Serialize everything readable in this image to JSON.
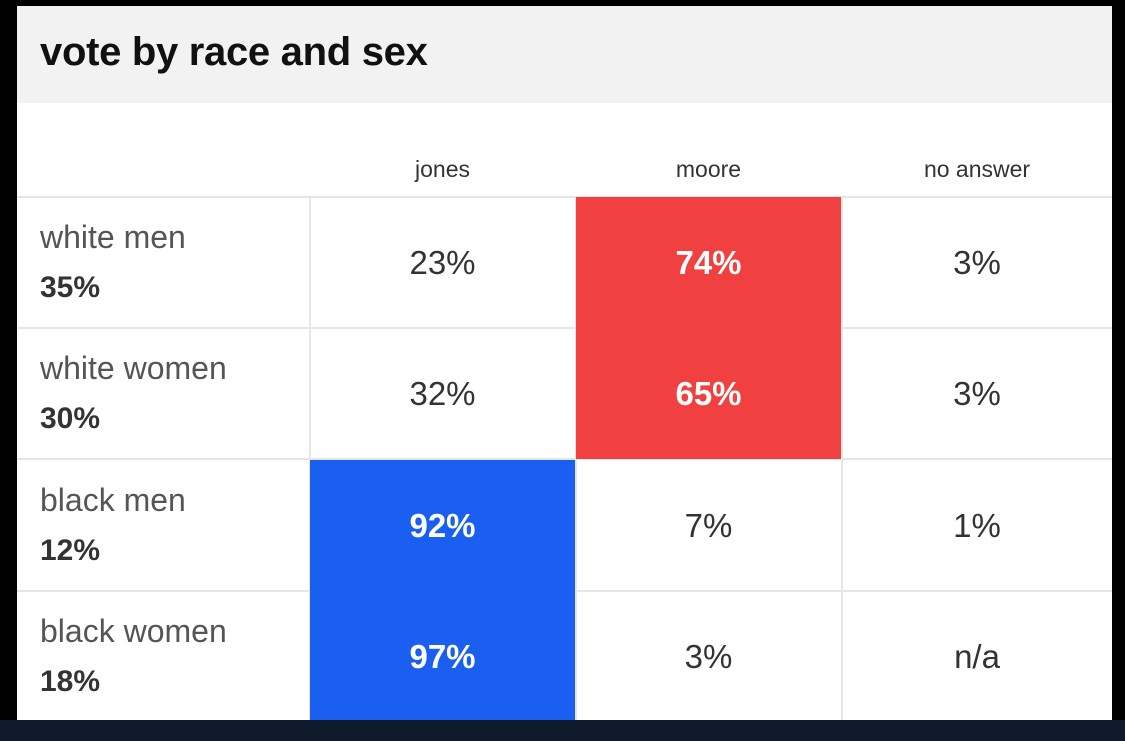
{
  "chart_data": {
    "type": "table",
    "title": "vote by race and sex",
    "columns": [
      "jones",
      "moore",
      "no answer"
    ],
    "rows": [
      {
        "label": "white men",
        "share": "35%",
        "values": [
          "23%",
          "74%",
          "3%"
        ],
        "highlight": 1,
        "highlight_color": "#f04040"
      },
      {
        "label": "white women",
        "share": "30%",
        "values": [
          "32%",
          "65%",
          "3%"
        ],
        "highlight": 1,
        "highlight_color": "#f04040"
      },
      {
        "label": "black men",
        "share": "12%",
        "values": [
          "92%",
          "7%",
          "1%"
        ],
        "highlight": 0,
        "highlight_color": "#1a5ff0"
      },
      {
        "label": "black women",
        "share": "18%",
        "values": [
          "97%",
          "3%",
          "n/a"
        ],
        "highlight": 0,
        "highlight_color": "#1a5ff0"
      }
    ]
  },
  "colors": {
    "republican_red": "#f04040",
    "democrat_blue": "#1a5ff0",
    "header_bg": "#f2f2f2"
  }
}
